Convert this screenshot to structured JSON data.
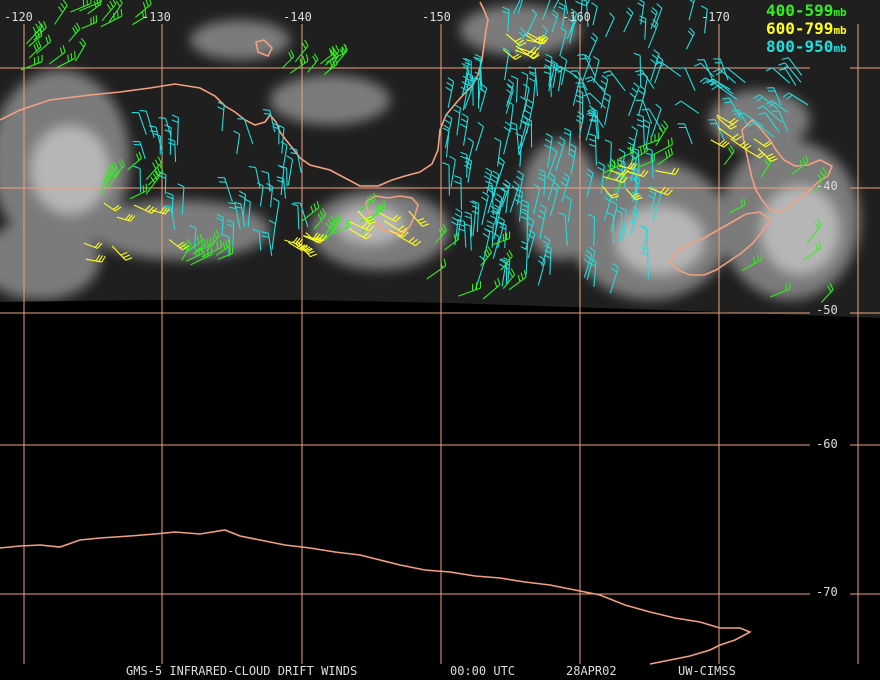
{
  "map": {
    "lon_labels": [
      "-120",
      "-130",
      "-140",
      "-150",
      "-160",
      "-170"
    ],
    "lat_labels": [
      "-40",
      "-50",
      "-60",
      "-70"
    ]
  },
  "legend": [
    {
      "range": "400-599",
      "unit": "mb",
      "color": "#33ee22"
    },
    {
      "range": "600-799",
      "unit": "mb",
      "color": "#ffff22"
    },
    {
      "range": "800-950",
      "unit": "mb",
      "color": "#22dddd"
    }
  ],
  "footer": {
    "product": "GMS-5 INFRARED-CLOUD DRIFT WINDS",
    "time": "00:00 UTC",
    "date": "28APR02",
    "source": "UW-CIMSS"
  },
  "colors": {
    "grid": "#f0a080",
    "coast": "#f4a080",
    "cloud": "#9a9a9a",
    "background": "#000000"
  }
}
